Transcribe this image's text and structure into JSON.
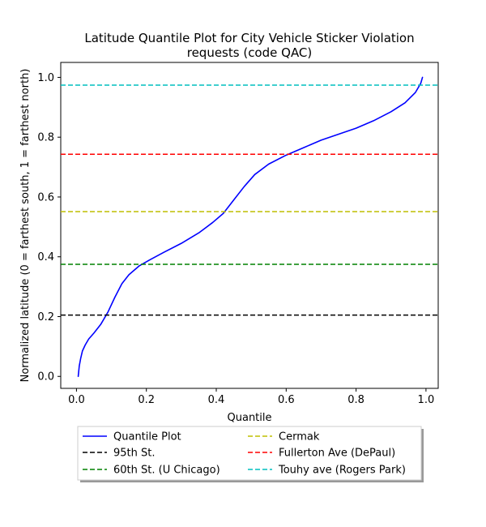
{
  "chart_data": {
    "type": "line",
    "title_line1": "Latitude Quantile Plot for City Vehicle Sticker Violation",
    "title_line2": "requests (code QAC)",
    "xlabel": "Quantile",
    "ylabel": "Normalized latitude (0 = farthest south, 1 = farthest north)",
    "xlim": [
      -0.045,
      1.035
    ],
    "ylim": [
      -0.04,
      1.05
    ],
    "xticks": [
      0.0,
      0.2,
      0.4,
      0.6,
      0.8,
      1.0
    ],
    "xtick_labels": [
      "0.0",
      "0.2",
      "0.4",
      "0.6",
      "0.8",
      "1.0"
    ],
    "yticks": [
      0.0,
      0.2,
      0.4,
      0.6,
      0.8,
      1.0
    ],
    "ytick_labels": [
      "0.0",
      "0.2",
      "0.4",
      "0.6",
      "0.8",
      "1.0"
    ],
    "grid": false,
    "legend_position": "below-center",
    "series": [
      {
        "name": "Quantile Plot",
        "color": "#0000ff",
        "style": "solid",
        "x": [
          0.005,
          0.008,
          0.012,
          0.017,
          0.025,
          0.035,
          0.05,
          0.07,
          0.09,
          0.11,
          0.13,
          0.15,
          0.18,
          0.21,
          0.25,
          0.3,
          0.35,
          0.39,
          0.42,
          0.45,
          0.48,
          0.51,
          0.55,
          0.6,
          0.65,
          0.7,
          0.75,
          0.8,
          0.85,
          0.9,
          0.94,
          0.97,
          0.985,
          0.99
        ],
        "y": [
          0.0,
          0.035,
          0.06,
          0.085,
          0.105,
          0.125,
          0.145,
          0.175,
          0.215,
          0.265,
          0.31,
          0.34,
          0.37,
          0.39,
          0.415,
          0.445,
          0.48,
          0.515,
          0.545,
          0.59,
          0.635,
          0.675,
          0.71,
          0.74,
          0.765,
          0.79,
          0.81,
          0.83,
          0.855,
          0.885,
          0.915,
          0.95,
          0.98,
          1.0
        ]
      },
      {
        "name": "95th St.",
        "color": "#000000",
        "style": "dashed",
        "y_const": 0.205
      },
      {
        "name": "60th St. (U Chicago)",
        "color": "#008000",
        "style": "dashed",
        "y_const": 0.375
      },
      {
        "name": "Cermak",
        "color": "#bfbf00",
        "style": "dashed",
        "y_const": 0.551
      },
      {
        "name": "Fullerton Ave (DePaul)",
        "color": "#ff0000",
        "style": "dashed",
        "y_const": 0.743
      },
      {
        "name": "Touhy ave (Rogers Park)",
        "color": "#00bfbf",
        "style": "dashed",
        "y_const": 0.974
      }
    ]
  }
}
